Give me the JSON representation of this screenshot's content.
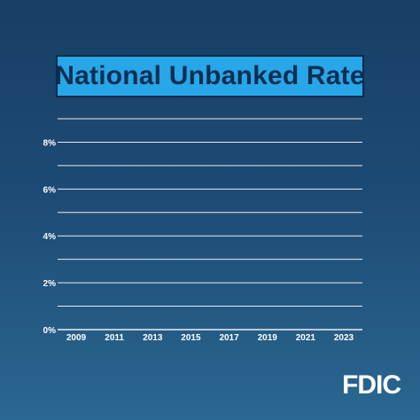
{
  "chart_data": {
    "type": "line",
    "title": "National Unbanked Rate",
    "categories": [
      "2009",
      "2011",
      "2013",
      "2015",
      "2017",
      "2019",
      "2021",
      "2023"
    ],
    "series": [],
    "ylim": [
      0,
      9
    ],
    "yticks": [
      {
        "value": 0,
        "label": "0%"
      },
      {
        "value": 2,
        "label": "2%"
      },
      {
        "value": 4,
        "label": "4%"
      },
      {
        "value": 6,
        "label": "6%"
      },
      {
        "value": 8,
        "label": "8%"
      }
    ],
    "gridlines": [
      0,
      1,
      2,
      3,
      4,
      5,
      6,
      7,
      8,
      9
    ],
    "grid": true,
    "colors": {
      "grid": "#ffffff",
      "title_bg": "#27a6e8",
      "title_text": "#0f2e52"
    }
  },
  "logo": {
    "text": "FDIC"
  }
}
